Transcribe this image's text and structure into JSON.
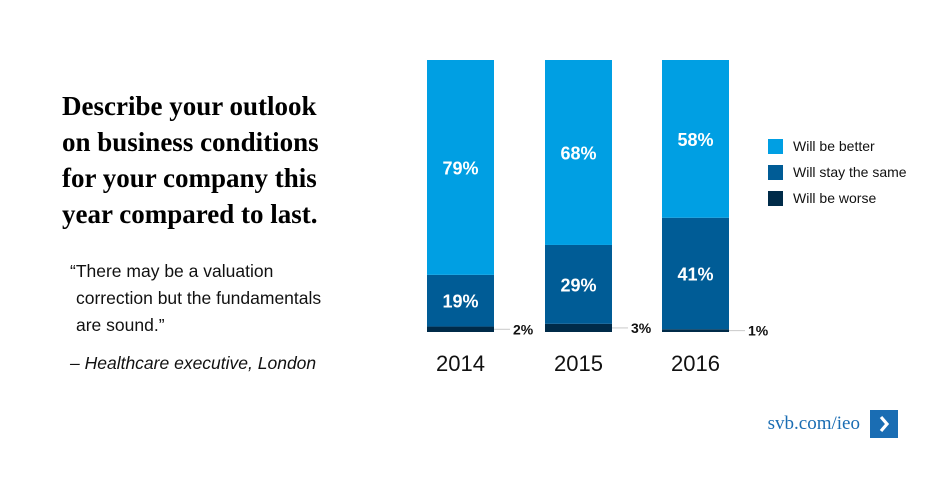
{
  "question": {
    "lines": [
      "Describe your outlook",
      "on business conditions",
      "for your company this",
      "year compared to last."
    ]
  },
  "quote": {
    "lines": [
      "“There may be a valuation",
      "correction but the fundamentals",
      "are sound.”"
    ],
    "attribution": "– Healthcare executive, London"
  },
  "link": {
    "text": "svb.com/ieo",
    "icon": "chevron-right-icon"
  },
  "colors": {
    "better": "#009fe3",
    "same": "#005c96",
    "worse": "#002b49",
    "link": "#1a6db3"
  },
  "chart_data": {
    "type": "bar",
    "stacked": true,
    "categories": [
      "2014",
      "2015",
      "2016"
    ],
    "series": [
      {
        "key": "worse",
        "name": "Will be worse",
        "values": [
          2,
          3,
          1
        ],
        "labels": [
          "2%",
          "3%",
          "1%"
        ]
      },
      {
        "key": "same",
        "name": "Will stay the same",
        "values": [
          19,
          29,
          41
        ],
        "labels": [
          "19%",
          "29%",
          "41%"
        ]
      },
      {
        "key": "better",
        "name": "Will be better",
        "values": [
          79,
          68,
          58
        ],
        "labels": [
          "79%",
          "68%",
          "58%"
        ]
      }
    ],
    "ylim": [
      0,
      100
    ],
    "legend_position": "right",
    "legend_order": [
      "better",
      "same",
      "worse"
    ]
  }
}
